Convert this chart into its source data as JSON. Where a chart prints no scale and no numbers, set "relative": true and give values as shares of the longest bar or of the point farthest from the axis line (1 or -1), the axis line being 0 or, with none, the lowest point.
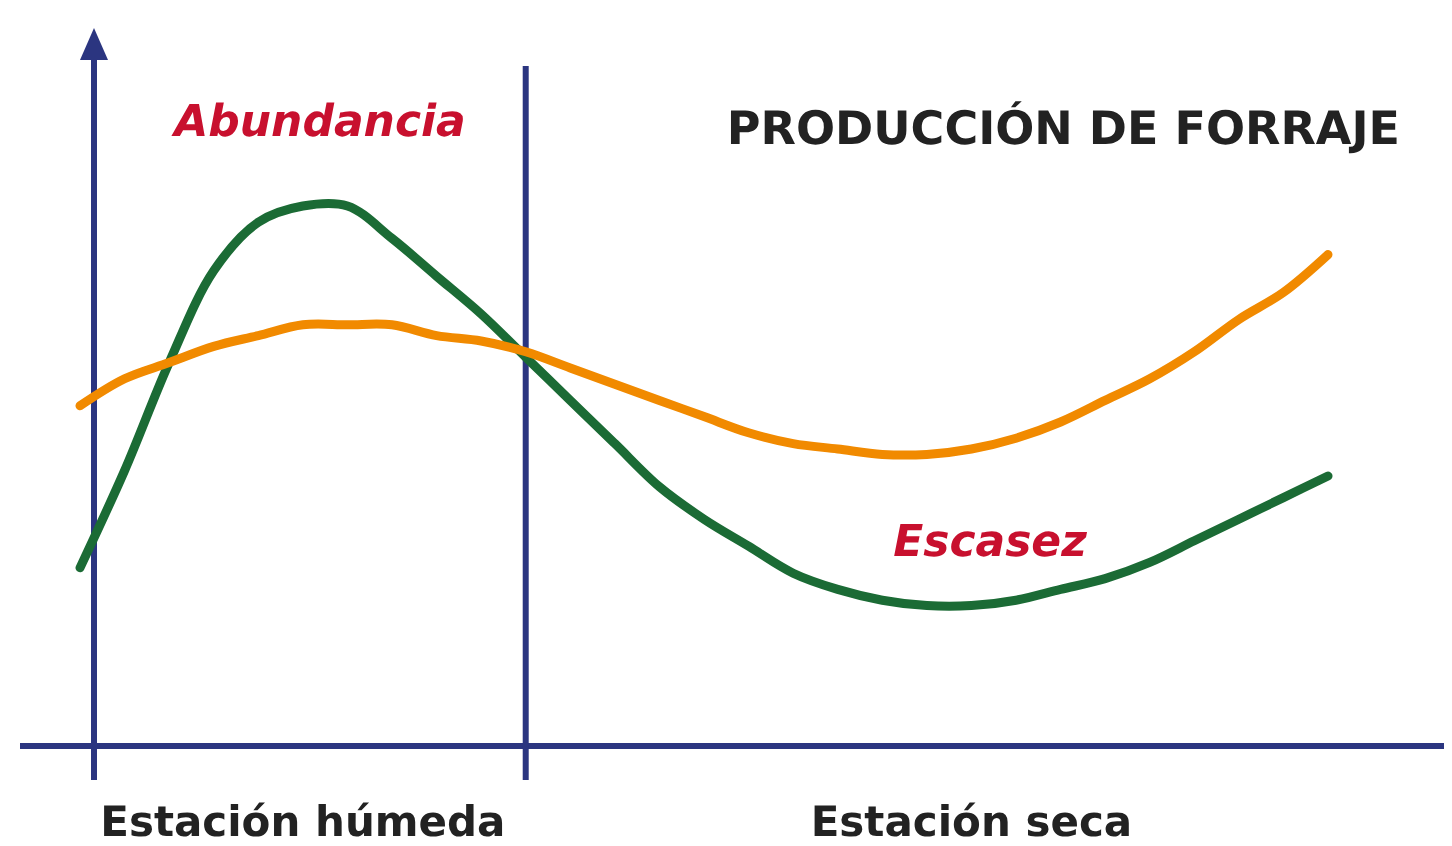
{
  "chart_data": {
    "type": "line",
    "title": "PRODUCCIÓN DE FORRAJE",
    "relative": true,
    "categories": [
      null,
      null,
      null,
      null,
      null,
      "Estación húmeda",
      null,
      null,
      null,
      null,
      null,
      null,
      null,
      null,
      null,
      null,
      null,
      null,
      null,
      null,
      "Estación seca",
      null,
      null,
      null,
      null,
      null,
      null,
      null,
      null
    ],
    "series": [
      {
        "color": "#1b6b35",
        "values": [
          0.33,
          0.51,
          0.71,
          0.88,
          0.97,
          1.0,
          1.0,
          0.94,
          0.87,
          0.8,
          0.72,
          0.64,
          0.56,
          0.48,
          0.42,
          0.37,
          0.32,
          0.29,
          0.27,
          0.26,
          0.26,
          0.27,
          0.29,
          0.31,
          0.34,
          0.38,
          0.42,
          0.46,
          0.5
        ]
      },
      {
        "color": "#f18a00",
        "values": [
          0.63,
          0.68,
          0.71,
          0.74,
          0.76,
          0.78,
          0.78,
          0.78,
          0.76,
          0.75,
          0.73,
          0.7,
          0.67,
          0.64,
          0.61,
          0.58,
          0.56,
          0.55,
          0.54,
          0.54,
          0.55,
          0.57,
          0.6,
          0.64,
          0.68,
          0.73,
          0.79,
          0.84,
          0.91
        ]
      }
    ],
    "annotations": [
      "Abundancia",
      "Escasez"
    ],
    "marker": "none",
    "line_style": "solid"
  }
}
